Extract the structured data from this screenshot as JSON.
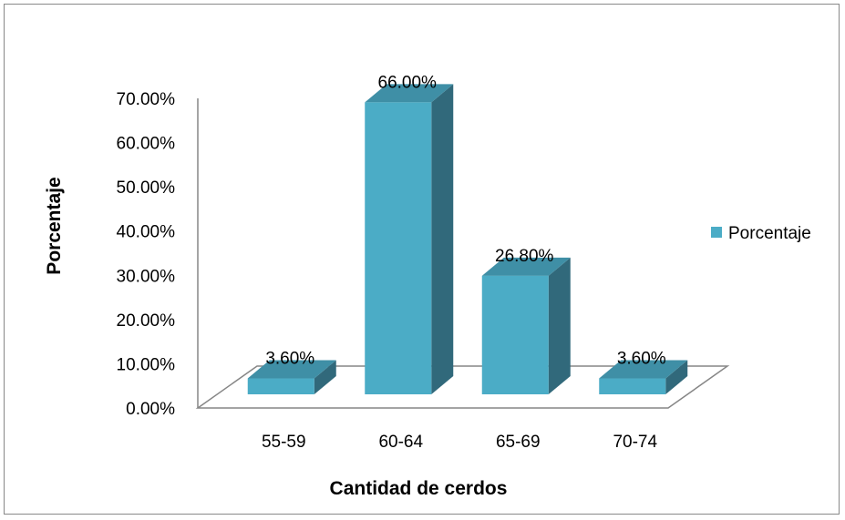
{
  "chart_data": {
    "type": "bar",
    "style": "3d-column",
    "categories": [
      "55-59",
      "60-64",
      "65-69",
      "70-74"
    ],
    "series": [
      {
        "name": "Porcentaje",
        "values": [
          3.6,
          66.0,
          26.8,
          3.6
        ]
      }
    ],
    "data_labels": [
      "3.60%",
      "66.00%",
      "26.80%",
      "3.60%"
    ],
    "y_ticks": [
      "0.00%",
      "10.00%",
      "20.00%",
      "30.00%",
      "40.00%",
      "50.00%",
      "60.00%",
      "70.00%"
    ],
    "ylim": [
      0,
      70
    ],
    "xlabel": "Cantidad de cerdos",
    "ylabel": "Porcentaje",
    "legend_position": "right",
    "grid": false,
    "colors": {
      "front": "#4bacc6",
      "side": "#31697b",
      "top": "#3f8fa6",
      "floor_line": "#868686"
    }
  }
}
